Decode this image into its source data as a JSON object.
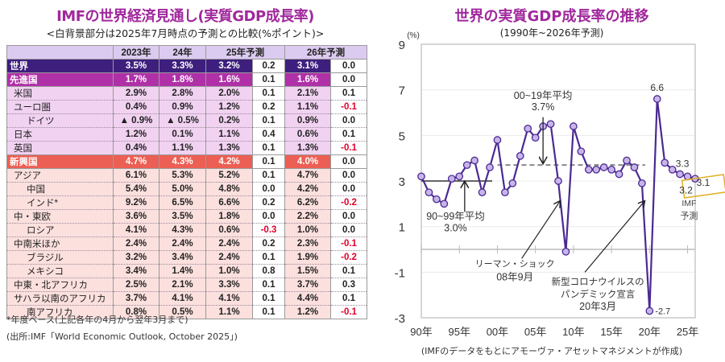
{
  "left": {
    "title": "IMFの世界経済見通し(実質GDP成長率)",
    "subtitle": "<白背景部分は2025年7月時点の予測との比較(%ポイント)>",
    "headers": [
      "",
      "2023年",
      "24年",
      "25年予測",
      "26年予測"
    ],
    "rows": [
      {
        "label": "世界",
        "cls": "world",
        "indent": 0,
        "v2023": "3.5%",
        "v2024": "3.3%",
        "v2025": "3.2%",
        "d2025": "0.2",
        "v2026": "3.1%",
        "d2026": "0.0"
      },
      {
        "label": "先進国",
        "cls": "adv",
        "indent": 0,
        "v2023": "1.7%",
        "v2024": "1.8%",
        "v2025": "1.6%",
        "d2025": "0.1",
        "v2026": "1.6%",
        "d2026": "0.0"
      },
      {
        "label": "米国",
        "cls": "advsub",
        "indent": 1,
        "v2023": "2.9%",
        "v2024": "2.8%",
        "v2025": "2.0%",
        "d2025": "0.1",
        "v2026": "2.1%",
        "d2026": "0.1"
      },
      {
        "label": "ユーロ圏",
        "cls": "advsub",
        "indent": 1,
        "v2023": "0.4%",
        "v2024": "0.9%",
        "v2025": "1.2%",
        "d2025": "0.2",
        "v2026": "1.1%",
        "d2026": "-0.1"
      },
      {
        "label": "ドイツ",
        "cls": "advsub",
        "indent": 2,
        "v2023": "▲ 0.9%",
        "v2024": "▲ 0.5%",
        "v2025": "0.2%",
        "d2025": "0.1",
        "v2026": "0.9%",
        "d2026": "0.0"
      },
      {
        "label": "日本",
        "cls": "advsub",
        "indent": 1,
        "v2023": "1.2%",
        "v2024": "0.1%",
        "v2025": "1.1%",
        "d2025": "0.4",
        "v2026": "0.6%",
        "d2026": "0.1"
      },
      {
        "label": "英国",
        "cls": "advsub",
        "indent": 1,
        "v2023": "0.4%",
        "v2024": "1.1%",
        "v2025": "1.3%",
        "d2025": "0.1",
        "v2026": "1.3%",
        "d2026": "-0.1"
      },
      {
        "label": "新興国",
        "cls": "em",
        "indent": 0,
        "v2023": "4.7%",
        "v2024": "4.3%",
        "v2025": "4.2%",
        "d2025": "0.1",
        "v2026": "4.0%",
        "d2026": "0.0"
      },
      {
        "label": "アジア",
        "cls": "emsub",
        "indent": 1,
        "v2023": "6.1%",
        "v2024": "5.3%",
        "v2025": "5.2%",
        "d2025": "0.1",
        "v2026": "4.7%",
        "d2026": "0.0"
      },
      {
        "label": "中国",
        "cls": "emsub",
        "indent": 2,
        "v2023": "5.4%",
        "v2024": "5.0%",
        "v2025": "4.8%",
        "d2025": "0.0",
        "v2026": "4.2%",
        "d2026": "0.0"
      },
      {
        "label": "インド*",
        "cls": "emsub",
        "indent": 2,
        "v2023": "9.2%",
        "v2024": "6.5%",
        "v2025": "6.6%",
        "d2025": "0.2",
        "v2026": "6.2%",
        "d2026": "-0.2"
      },
      {
        "label": "中・東欧",
        "cls": "emsub",
        "indent": 1,
        "v2023": "3.6%",
        "v2024": "3.5%",
        "v2025": "1.8%",
        "d2025": "0.0",
        "v2026": "2.2%",
        "d2026": "0.0"
      },
      {
        "label": "ロシア",
        "cls": "emsub",
        "indent": 2,
        "v2023": "4.1%",
        "v2024": "4.3%",
        "v2025": "0.6%",
        "d2025": "-0.3",
        "v2026": "1.0%",
        "d2026": "0.0"
      },
      {
        "label": "中南米ほか",
        "cls": "emsub",
        "indent": 1,
        "v2023": "2.4%",
        "v2024": "2.4%",
        "v2025": "2.4%",
        "d2025": "0.2",
        "v2026": "2.3%",
        "d2026": "-0.1"
      },
      {
        "label": "ブラジル",
        "cls": "emsub",
        "indent": 2,
        "v2023": "3.2%",
        "v2024": "3.4%",
        "v2025": "2.4%",
        "d2025": "0.1",
        "v2026": "1.9%",
        "d2026": "-0.2"
      },
      {
        "label": "メキシコ",
        "cls": "emsub",
        "indent": 2,
        "v2023": "3.4%",
        "v2024": "1.4%",
        "v2025": "1.0%",
        "d2025": "0.8",
        "v2026": "1.5%",
        "d2026": "0.1"
      },
      {
        "label": "中東・北アフリカ",
        "cls": "emsub",
        "indent": 1,
        "v2023": "2.5%",
        "v2024": "2.1%",
        "v2025": "3.3%",
        "d2025": "0.1",
        "v2026": "3.7%",
        "d2026": "0.3"
      },
      {
        "label": "サハラ以南のアフリカ",
        "cls": "emsub",
        "indent": 1,
        "v2023": "3.7%",
        "v2024": "4.1%",
        "v2025": "4.1%",
        "d2025": "0.1",
        "v2026": "4.4%",
        "d2026": "0.1"
      },
      {
        "label": "南アフリカ",
        "cls": "emsub",
        "indent": 2,
        "v2023": "0.8%",
        "v2024": "0.5%",
        "v2025": "1.1%",
        "d2025": "0.1",
        "v2026": "1.2%",
        "d2026": "-0.1"
      }
    ],
    "note1": "*年度ベース(上記各年の4月から翌年3月まで)",
    "note2": "(出所:IMF「World Economic Outlook, October 2025」)"
  },
  "right": {
    "title": "世界の実質GDP成長率の推移",
    "subtitle": "(1990年~2026年予測)",
    "source": "(IMFのデータをもとにアモーヴァ・アセットマネジメントが作成)"
  },
  "colors": {
    "title": "#a0289c",
    "line": "#4a2a92",
    "marker_fill": "#c8b4ea",
    "avg_solid": "#333333",
    "avg_dashed": "#888888",
    "forecast_box": "#e0b020",
    "negative": "#e0002a"
  },
  "chart_data": {
    "type": "line",
    "title": "世界の実質GDP成長率の推移",
    "subtitle": "(1990年~2026年予測)",
    "ylabel": "(%)",
    "xlabel": "",
    "ylim": [
      -3,
      9
    ],
    "yticks": [
      9,
      7,
      5,
      3,
      1,
      -1,
      -3
    ],
    "xlim": [
      1990,
      2026
    ],
    "xticks": [
      1990,
      1995,
      2000,
      2005,
      2010,
      2015,
      2020,
      2025
    ],
    "xtick_labels": [
      "90年",
      "95年",
      "00年",
      "05年",
      "10年",
      "15年",
      "20年",
      "25年"
    ],
    "grid": true,
    "series": [
      {
        "name": "世界の実質GDP成長率",
        "x": [
          1990,
          1991,
          1992,
          1993,
          1994,
          1995,
          1996,
          1997,
          1998,
          1999,
          2000,
          2001,
          2002,
          2003,
          2004,
          2005,
          2006,
          2007,
          2008,
          2009,
          2010,
          2011,
          2012,
          2013,
          2014,
          2015,
          2016,
          2017,
          2018,
          2019,
          2020,
          2021,
          2022,
          2023,
          2024,
          2025,
          2026
        ],
        "values": [
          3.2,
          2.5,
          2.2,
          2.0,
          3.1,
          3.2,
          3.7,
          3.9,
          2.5,
          3.6,
          4.8,
          2.5,
          2.9,
          4.1,
          5.3,
          4.9,
          5.4,
          5.5,
          3.0,
          -0.1,
          5.4,
          4.3,
          3.5,
          3.5,
          3.6,
          3.5,
          3.3,
          3.9,
          3.6,
          2.9,
          -2.7,
          6.6,
          3.8,
          3.5,
          3.3,
          3.2,
          3.1
        ]
      }
    ],
    "averages": [
      {
        "label": "90~99年平均",
        "value_label": "3.0%",
        "value": 3.0,
        "from": 1990,
        "to": 1999,
        "style": "solid"
      },
      {
        "label": "00~19年平均",
        "value_label": "3.7%",
        "value": 3.7,
        "from": 2000,
        "to": 2019,
        "style": "dashed"
      }
    ],
    "annotations": [
      {
        "text": "6.6",
        "x": 2021
      },
      {
        "text": "-2.7",
        "x": 2020
      },
      {
        "text": "3.3",
        "x": 2024
      },
      {
        "text": "3.2",
        "x": 2025,
        "boxed": true
      },
      {
        "text": "3.1",
        "x": 2026,
        "boxed": true
      },
      {
        "text": "リーマン・ショック",
        "sub": "08年9月"
      },
      {
        "text": "新型コロナウイルスの",
        "sub": "パンデミック宣言",
        "sub2": "20年3月"
      },
      {
        "text": "IMF",
        "sub": "予測"
      }
    ]
  }
}
